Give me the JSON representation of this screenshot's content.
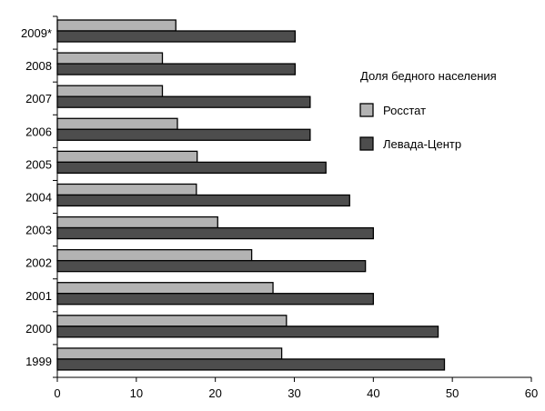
{
  "chart_data": {
    "type": "bar",
    "orientation": "horizontal",
    "title": "",
    "xlabel": "",
    "ylabel": "",
    "categories": [
      "2009*",
      "2008",
      "2007",
      "2006",
      "2005",
      "2004",
      "2003",
      "2002",
      "2001",
      "2000",
      "1999"
    ],
    "series": [
      {
        "name": "Росстат",
        "color": "#b3b3b3",
        "values": [
          15,
          13.3,
          13.3,
          15.2,
          17.7,
          17.6,
          20.3,
          24.6,
          27.3,
          29,
          28.4
        ]
      },
      {
        "name": "Левада-Центр",
        "color": "#4d4d4d",
        "values": [
          30.1,
          30.1,
          32,
          32,
          34,
          37,
          40,
          39,
          40,
          48.2,
          49
        ]
      }
    ],
    "xlim": [
      0,
      60
    ],
    "xticks": [
      0,
      10,
      20,
      30,
      40,
      50,
      60
    ],
    "grid": false,
    "legend": {
      "title": "Доля бедного населения",
      "position": "right"
    }
  }
}
